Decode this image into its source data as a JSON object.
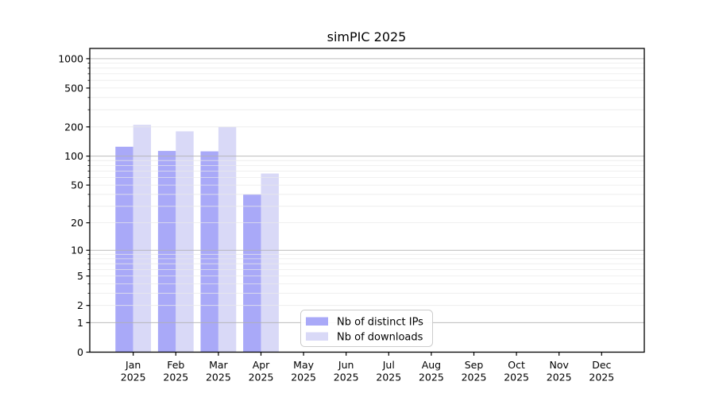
{
  "chart_data": {
    "type": "bar",
    "title": "simPIC 2025",
    "categories": [
      "Jan 2025",
      "Feb 2025",
      "Mar 2025",
      "Apr 2025",
      "May 2025",
      "Jun 2025",
      "Jul 2025",
      "Aug 2025",
      "Sep 2025",
      "Oct 2025",
      "Nov 2025",
      "Dec 2025"
    ],
    "series": [
      {
        "name": "Nb of distinct IPs",
        "color": "#a9a9f8",
        "values": [
          125,
          113,
          112,
          40,
          0,
          0,
          0,
          0,
          0,
          0,
          0,
          0
        ]
      },
      {
        "name": "Nb of downloads",
        "color": "#d9d9f7",
        "values": [
          210,
          180,
          200,
          66,
          0,
          0,
          0,
          0,
          0,
          0,
          0,
          0
        ]
      }
    ],
    "xlabel": "",
    "ylabel": "",
    "yscale": "log(1+x)",
    "yticks": [
      0,
      1,
      2,
      5,
      10,
      20,
      50,
      100,
      200,
      500,
      1000
    ],
    "ylim": [
      0,
      1270
    ],
    "grid": {
      "major_at": [
        1,
        10,
        100,
        1000
      ],
      "major_color": "#b0b0b0",
      "minor_color": "#e8e8e8"
    },
    "legend": {
      "position": "inside-bottom-center",
      "background": "#ffffff",
      "border_color": "#cccccc"
    },
    "frame_color": "#000000"
  }
}
